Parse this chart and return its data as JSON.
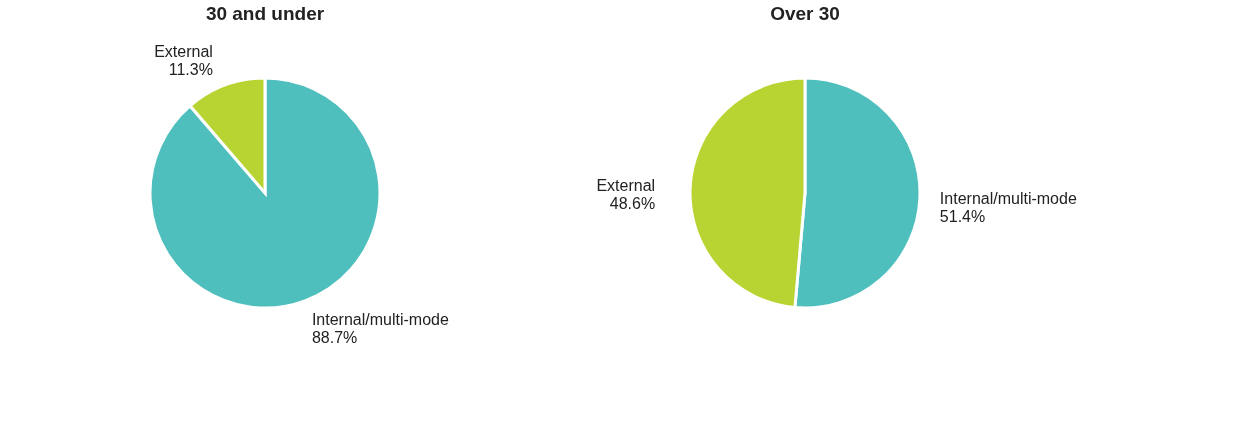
{
  "chart_data": [
    {
      "type": "pie",
      "title": "30 and under",
      "categories": [
        "Internal/multi-mode",
        "External"
      ],
      "values": [
        88.7,
        11.3
      ],
      "colors": [
        "#4fbfbe",
        "#b8d433"
      ],
      "value_labels": [
        "88.7%",
        "11.3%"
      ]
    },
    {
      "type": "pie",
      "title": "Over 30",
      "categories": [
        "Internal/multi-mode",
        "External"
      ],
      "values": [
        51.4,
        48.6
      ],
      "colors": [
        "#4fbfbe",
        "#b8d433"
      ],
      "value_labels": [
        "51.4%",
        "48.6%"
      ]
    }
  ]
}
